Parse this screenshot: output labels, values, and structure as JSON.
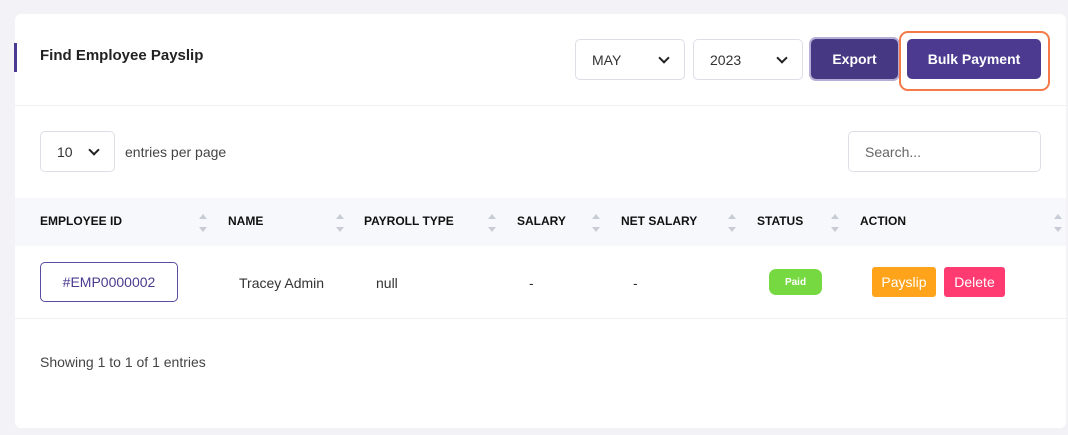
{
  "header": {
    "title": "Find Employee Payslip",
    "month": "MAY",
    "year": "2023",
    "export_label": "Export",
    "bulk_payment_label": "Bulk Payment"
  },
  "entries": {
    "value": "10",
    "label": "entries per page"
  },
  "search": {
    "placeholder": "Search..."
  },
  "table": {
    "columns": [
      "EMPLOYEE ID",
      "NAME",
      "PAYROLL TYPE",
      "SALARY",
      "NET SALARY",
      "STATUS",
      "ACTION"
    ],
    "rows": [
      {
        "employee_id": "#EMP0000002",
        "name": "Tracey Admin",
        "payroll_type": "null",
        "salary": "-",
        "net_salary": "-",
        "status": "Paid",
        "actions": [
          "Payslip",
          "Delete"
        ]
      }
    ]
  },
  "footer": {
    "info": "Showing 1 to 1 of 1 entries"
  },
  "colors": {
    "primary": "#4b3a8f",
    "paid": "#77d942",
    "payslip": "#ffa31a",
    "delete": "#ff3b72",
    "highlight": "#f57a48"
  }
}
